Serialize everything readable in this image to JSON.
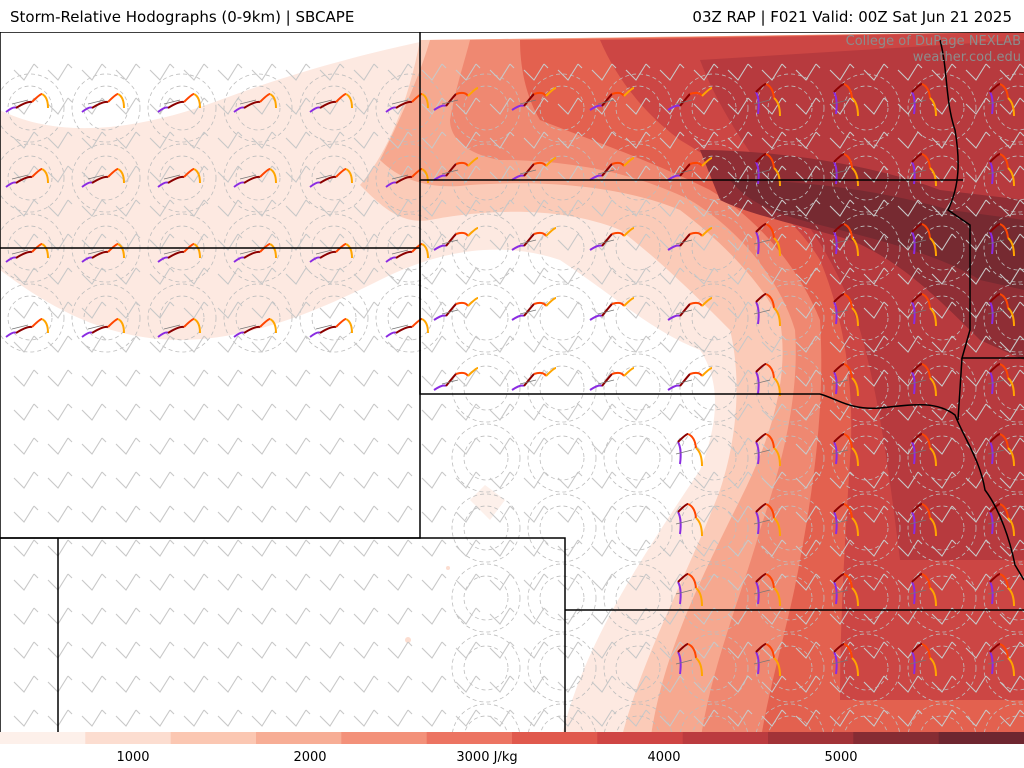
{
  "header": {
    "title_left": "Storm-Relative Hodographs (0-9km) | SBCAPE",
    "title_right": "03Z RAP | F021 Valid: 00Z Sat Jun 21 2025"
  },
  "credit": {
    "line1": "College of DuPage NEXLAB",
    "line2": "weather.cod.edu"
  },
  "colorbar": {
    "ticks": [
      "1000",
      "2000",
      "3000 J/kg",
      "4000",
      "5000"
    ],
    "colors": [
      "#fdf0ea",
      "#fcddd0",
      "#fbc7b2",
      "#f7ad95",
      "#f3917a",
      "#ec7462",
      "#e0594d",
      "#cf4544",
      "#bb3b3f",
      "#a23338",
      "#862c33",
      "#6e2630"
    ]
  },
  "map": {
    "field": "SBCAPE",
    "units": "J/kg",
    "hodograph_colors": [
      "#8a2be2",
      "#8b0000",
      "#ff4500",
      "#ffa500"
    ]
  }
}
